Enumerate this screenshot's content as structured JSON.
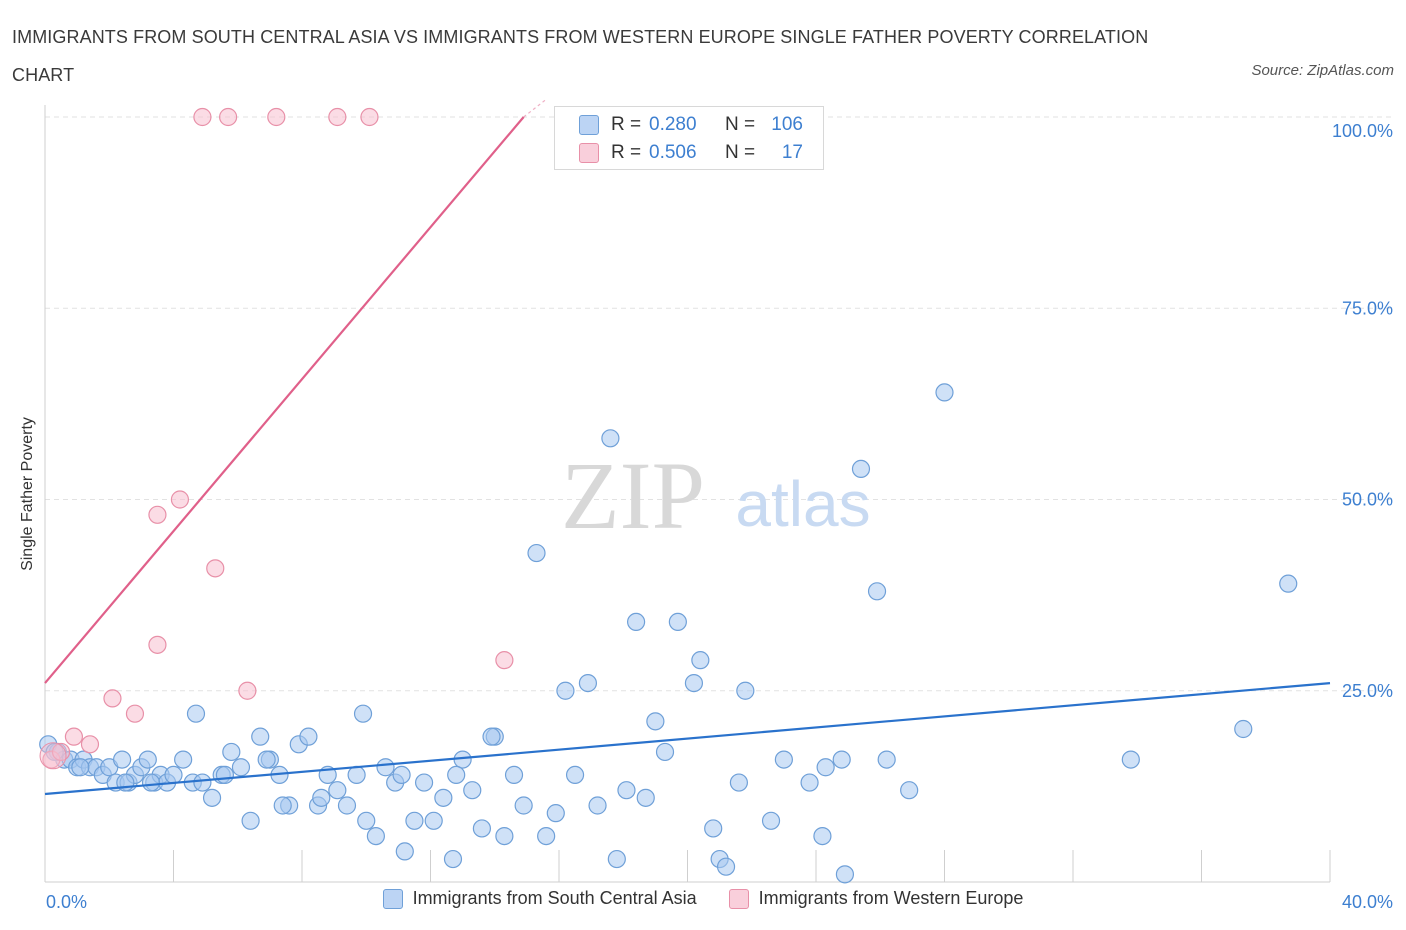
{
  "chart_data": {
    "type": "scatter",
    "title": "IMMIGRANTS FROM SOUTH CENTRAL ASIA VS IMMIGRANTS FROM WESTERN EUROPE SINGLE FATHER POVERTY CORRELATION CHART",
    "source": "Source: ZipAtlas.com",
    "xlabel": "",
    "ylabel": "Single Father Poverty",
    "xlim": [
      0,
      40
    ],
    "ylim": [
      0,
      100
    ],
    "x_tick_labels": [
      "0.0%",
      "40.0%"
    ],
    "y_tick_labels": [
      "25.0%",
      "50.0%",
      "75.0%",
      "100.0%"
    ],
    "watermark": {
      "zip": "ZIP",
      "atlas": "atlas"
    },
    "series": [
      {
        "name": "Immigrants from South Central Asia",
        "color": "#a8c8f0",
        "stroke": "#6fa0d8",
        "line_color": "#2a72cc",
        "R": "0.280",
        "N": "106",
        "trend": {
          "x0": 0,
          "y0": 11.5,
          "x1": 40,
          "y1": 26.0
        },
        "points": [
          [
            0.1,
            18
          ],
          [
            0.4,
            17
          ],
          [
            0.6,
            16
          ],
          [
            0.8,
            16
          ],
          [
            1.0,
            15
          ],
          [
            1.2,
            16
          ],
          [
            1.4,
            15
          ],
          [
            1.6,
            15
          ],
          [
            1.8,
            14
          ],
          [
            2.0,
            15
          ],
          [
            2.2,
            13
          ],
          [
            2.4,
            16
          ],
          [
            2.6,
            13
          ],
          [
            2.8,
            14
          ],
          [
            3.0,
            15
          ],
          [
            3.2,
            16
          ],
          [
            3.4,
            13
          ],
          [
            3.6,
            14
          ],
          [
            3.8,
            13
          ],
          [
            4.0,
            14
          ],
          [
            4.3,
            16
          ],
          [
            4.6,
            13
          ],
          [
            4.9,
            13
          ],
          [
            5.2,
            11
          ],
          [
            5.5,
            14
          ],
          [
            5.8,
            17
          ],
          [
            6.1,
            15
          ],
          [
            6.4,
            8
          ],
          [
            6.7,
            19
          ],
          [
            7.0,
            16
          ],
          [
            7.3,
            14
          ],
          [
            7.6,
            10
          ],
          [
            7.9,
            18
          ],
          [
            8.2,
            19
          ],
          [
            8.5,
            10
          ],
          [
            8.8,
            14
          ],
          [
            9.1,
            12
          ],
          [
            9.4,
            10
          ],
          [
            9.7,
            14
          ],
          [
            10.0,
            8
          ],
          [
            10.3,
            6
          ],
          [
            10.6,
            15
          ],
          [
            10.9,
            13
          ],
          [
            11.2,
            4
          ],
          [
            11.5,
            8
          ],
          [
            11.8,
            13
          ],
          [
            12.1,
            8
          ],
          [
            12.4,
            11
          ],
          [
            12.7,
            3
          ],
          [
            13.0,
            16
          ],
          [
            13.3,
            12
          ],
          [
            13.6,
            7
          ],
          [
            14.0,
            19
          ],
          [
            14.3,
            6
          ],
          [
            14.6,
            14
          ],
          [
            14.9,
            10
          ],
          [
            15.3,
            43
          ],
          [
            15.6,
            6
          ],
          [
            15.9,
            9
          ],
          [
            16.2,
            25
          ],
          [
            16.5,
            14
          ],
          [
            16.9,
            26
          ],
          [
            17.2,
            10
          ],
          [
            17.6,
            58
          ],
          [
            17.8,
            3
          ],
          [
            18.1,
            12
          ],
          [
            18.4,
            34
          ],
          [
            18.7,
            11
          ],
          [
            19.0,
            21
          ],
          [
            19.3,
            17
          ],
          [
            19.7,
            34
          ],
          [
            20.2,
            26
          ],
          [
            20.4,
            29
          ],
          [
            20.8,
            7
          ],
          [
            21.0,
            3
          ],
          [
            21.2,
            2
          ],
          [
            21.6,
            13
          ],
          [
            21.8,
            25
          ],
          [
            22.6,
            8
          ],
          [
            23.0,
            16
          ],
          [
            23.8,
            13
          ],
          [
            24.2,
            6
          ],
          [
            24.3,
            15
          ],
          [
            24.8,
            16
          ],
          [
            24.9,
            1
          ],
          [
            25.4,
            54
          ],
          [
            25.9,
            38
          ],
          [
            26.2,
            16
          ],
          [
            26.9,
            12
          ],
          [
            28.0,
            64
          ],
          [
            33.8,
            16
          ],
          [
            37.3,
            20
          ],
          [
            38.7,
            39
          ],
          [
            4.7,
            22
          ],
          [
            2.5,
            13
          ],
          [
            5.6,
            14
          ],
          [
            7.4,
            10
          ],
          [
            9.9,
            22
          ],
          [
            11.1,
            14
          ],
          [
            13.9,
            19
          ],
          [
            3.3,
            13
          ],
          [
            6.9,
            16
          ],
          [
            8.6,
            11
          ],
          [
            12.8,
            14
          ],
          [
            1.1,
            15
          ],
          [
            0.3,
            17
          ]
        ]
      },
      {
        "name": "Immigrants from Western Europe",
        "color": "#f8c0d0",
        "stroke": "#e890a8",
        "line_color": "#e0608a",
        "R": "0.506",
        "N": "17",
        "trend": {
          "x0": 0,
          "y0": 26.0,
          "x1": 14.9,
          "y1": 100
        },
        "points": [
          [
            0.2,
            16
          ],
          [
            0.5,
            17
          ],
          [
            0.9,
            19
          ],
          [
            1.4,
            18
          ],
          [
            2.1,
            24
          ],
          [
            2.8,
            22
          ],
          [
            3.5,
            31
          ],
          [
            3.5,
            48
          ],
          [
            4.2,
            50
          ],
          [
            5.3,
            41
          ],
          [
            6.3,
            25
          ],
          [
            4.9,
            100
          ],
          [
            5.7,
            100
          ],
          [
            7.2,
            100
          ],
          [
            9.1,
            100
          ],
          [
            10.1,
            100
          ],
          [
            14.3,
            29
          ]
        ]
      }
    ]
  }
}
